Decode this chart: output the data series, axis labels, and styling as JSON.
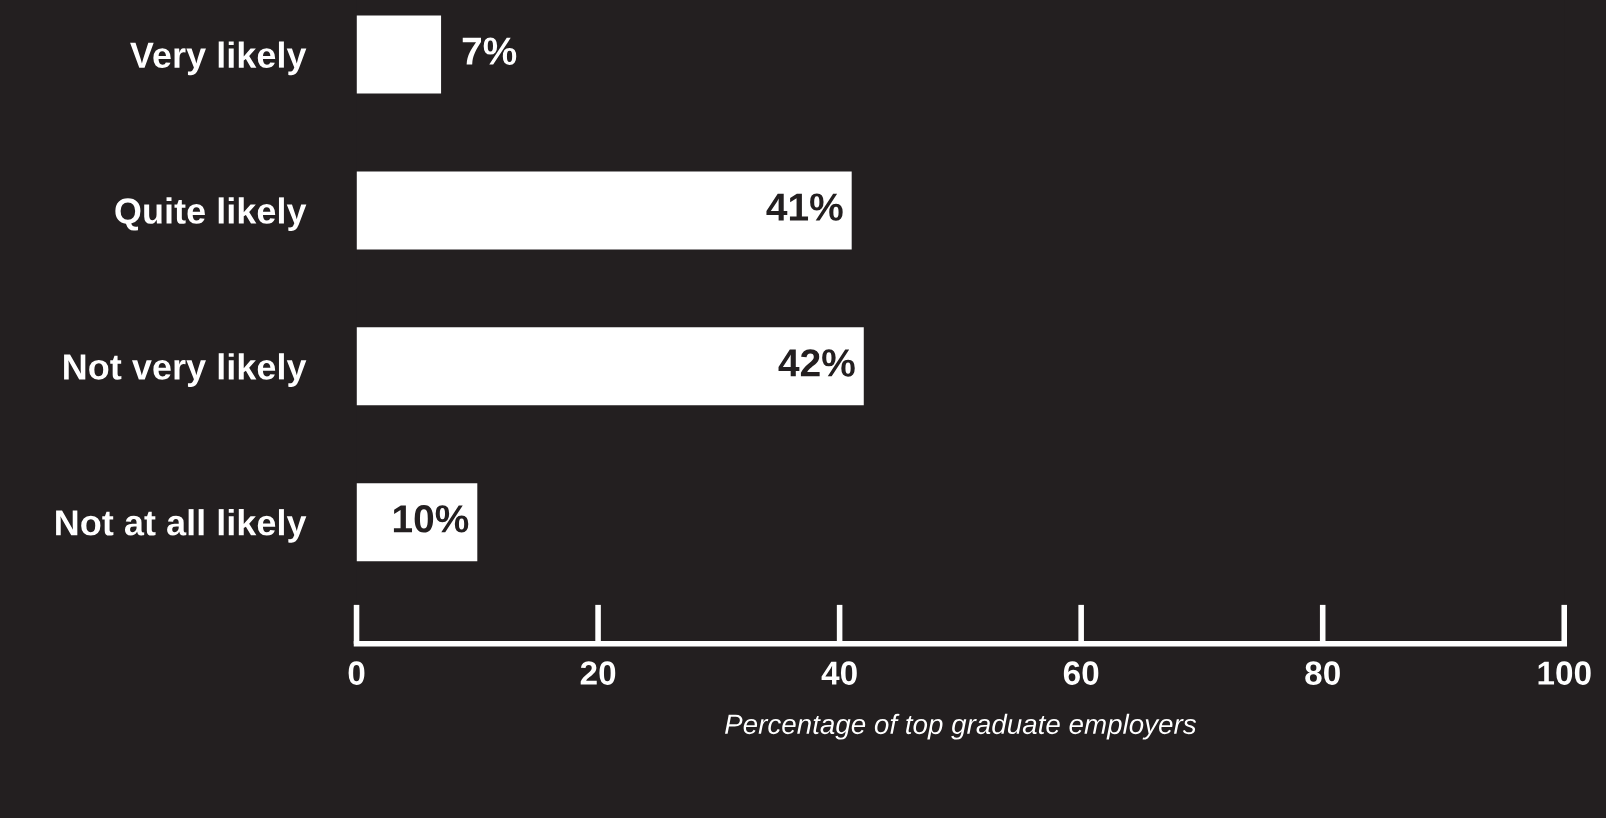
{
  "chart_data": {
    "type": "bar",
    "orientation": "horizontal",
    "xlabel": "Percentage of top graduate employers",
    "categories": [
      "Very likely",
      "Quite likely",
      "Not very likely",
      "Not at all likely"
    ],
    "values": [
      7,
      41,
      42,
      10
    ],
    "value_labels": [
      "7%",
      "41%",
      "42%",
      "10%"
    ],
    "color": "#ffffff",
    "xlim": [
      0,
      100
    ],
    "xticks": [
      0,
      20,
      40,
      60,
      80,
      100
    ],
    "grid": false
  }
}
